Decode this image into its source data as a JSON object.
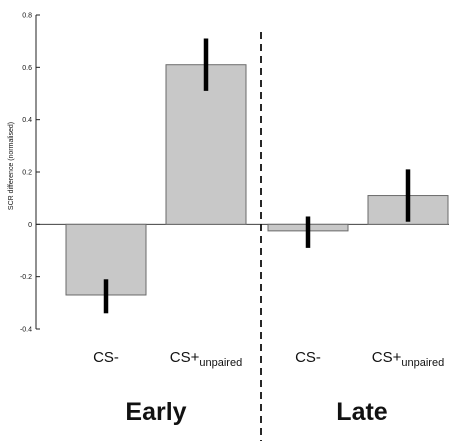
{
  "chart_data": {
    "type": "bar",
    "title": "",
    "ylabel": "SCR difference (normalised)",
    "xlabel": "",
    "ylim": [
      -0.4,
      0.8
    ],
    "yticks": [
      "-0.4",
      "-0.2",
      "0",
      "0.2",
      "0.4",
      "0.6",
      "0.8"
    ],
    "ytick_values": [
      -0.4,
      -0.2,
      0,
      0.2,
      0.4,
      0.6,
      0.8
    ],
    "categories": [
      {
        "main": "CS-",
        "sub": ""
      },
      {
        "main": "CS+",
        "sub": "unpaired"
      },
      {
        "main": "CS-",
        "sub": ""
      },
      {
        "main": "CS+",
        "sub": "unpaired"
      }
    ],
    "values": [
      -0.27,
      0.61,
      -0.025,
      0.11
    ],
    "error_bars": [
      {
        "low": -0.34,
        "high": -0.21
      },
      {
        "low": 0.51,
        "high": 0.71
      },
      {
        "low": -0.09,
        "high": 0.03
      },
      {
        "low": 0.01,
        "high": 0.21
      }
    ],
    "groups": [
      {
        "label": "Early",
        "categories": [
          0,
          1
        ]
      },
      {
        "label": "Late",
        "categories": [
          2,
          3
        ]
      }
    ],
    "grid": false,
    "colors": {
      "bar_fill": "#c8c8c8",
      "bar_stroke": "#6a6a6a",
      "error_bar": "#000000",
      "axis": "#222222"
    }
  }
}
